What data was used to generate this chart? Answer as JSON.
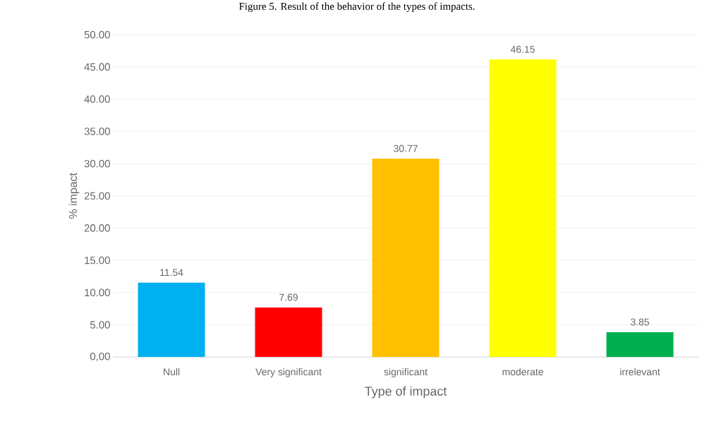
{
  "chart_data": {
    "type": "bar",
    "title": "Figure 5. Result of the behavior of the types of impacts.",
    "xlabel": "Type of impact",
    "ylabel": "% impact",
    "categories": [
      "Null",
      "Very significant",
      "significant",
      "moderate",
      "irrelevant"
    ],
    "values": [
      11.54,
      7.69,
      30.77,
      46.15,
      3.85
    ],
    "colors": [
      "#00b0f0",
      "#ff0000",
      "#ffc000",
      "#ffff00",
      "#00b050"
    ],
    "ylim": [
      0,
      50
    ],
    "yticks": [
      {
        "value": 0,
        "label": "0,00"
      },
      {
        "value": 5,
        "label": "5.00"
      },
      {
        "value": 10,
        "label": "10.00"
      },
      {
        "value": 15,
        "label": "15.00"
      },
      {
        "value": 20,
        "label": "20.00"
      },
      {
        "value": 25,
        "label": "25.00"
      },
      {
        "value": 30,
        "label": "30.00"
      },
      {
        "value": 35,
        "label": "35.00"
      },
      {
        "value": 40,
        "label": "40.00"
      },
      {
        "value": 45,
        "label": "45.00"
      },
      {
        "value": 50,
        "label": "50.00"
      }
    ],
    "grid": "y",
    "data_labels": true
  }
}
